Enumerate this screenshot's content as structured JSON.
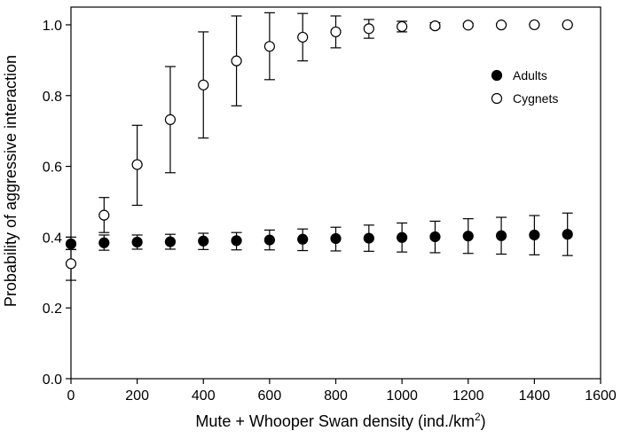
{
  "chart_data": {
    "type": "scatter",
    "xlabel": "Mute + Whooper Swan density (ind./km",
    "xlabel_sup": "2",
    "xlabel_end": ")",
    "ylabel": "Probability of aggressive interaction",
    "xlim": [
      0,
      1600
    ],
    "ylim": [
      0,
      1.05
    ],
    "x_ticks": [
      0,
      200,
      400,
      600,
      800,
      1000,
      1200,
      1400,
      1600
    ],
    "x_tick_labels": [
      "0",
      "200",
      "400",
      "600",
      "800",
      "1000",
      "1200",
      "1400",
      "1600"
    ],
    "y_ticks": [
      0,
      0.2,
      0.4,
      0.6,
      0.8,
      1.0
    ],
    "y_tick_labels": [
      "0.0",
      "0.2",
      "0.4",
      "0.6",
      "0.8",
      "1.0"
    ],
    "grid": false,
    "legend_position": "top-right",
    "x": [
      0,
      100,
      200,
      300,
      400,
      500,
      600,
      700,
      800,
      900,
      1000,
      1100,
      1200,
      1300,
      1400,
      1500
    ],
    "series": [
      {
        "name": "Adults",
        "marker": "filled-circle",
        "color": "#000000",
        "values": [
          0.381,
          0.384,
          0.386,
          0.387,
          0.389,
          0.39,
          0.392,
          0.394,
          0.396,
          0.397,
          0.399,
          0.401,
          0.403,
          0.404,
          0.406,
          0.408
        ],
        "err_low": [
          0.365,
          0.363,
          0.366,
          0.366,
          0.365,
          0.364,
          0.364,
          0.362,
          0.361,
          0.36,
          0.358,
          0.356,
          0.354,
          0.352,
          0.35,
          0.348
        ],
        "err_high": [
          0.4,
          0.406,
          0.406,
          0.408,
          0.411,
          0.413,
          0.42,
          0.423,
          0.428,
          0.434,
          0.44,
          0.445,
          0.452,
          0.456,
          0.461,
          0.468
        ]
      },
      {
        "name": "Cygnets",
        "marker": "open-circle",
        "color": "#000000",
        "values": [
          0.325,
          0.462,
          0.605,
          0.732,
          0.83,
          0.898,
          0.939,
          0.965,
          0.98,
          0.989,
          0.995,
          0.997,
          0.999,
          0.9995,
          1.0,
          1.0
        ],
        "err_low": [
          0.278,
          0.413,
          0.49,
          0.582,
          0.68,
          0.771,
          0.845,
          0.898,
          0.935,
          0.962,
          0.98,
          0.99,
          0.995,
          0.998,
          0.999,
          0.999
        ],
        "err_high": [
          0.365,
          0.512,
          0.716,
          0.882,
          0.98,
          1.025,
          1.034,
          1.032,
          1.025,
          1.015,
          1.01,
          1.006,
          1.004,
          1.003,
          1.002,
          1.002
        ]
      }
    ]
  }
}
